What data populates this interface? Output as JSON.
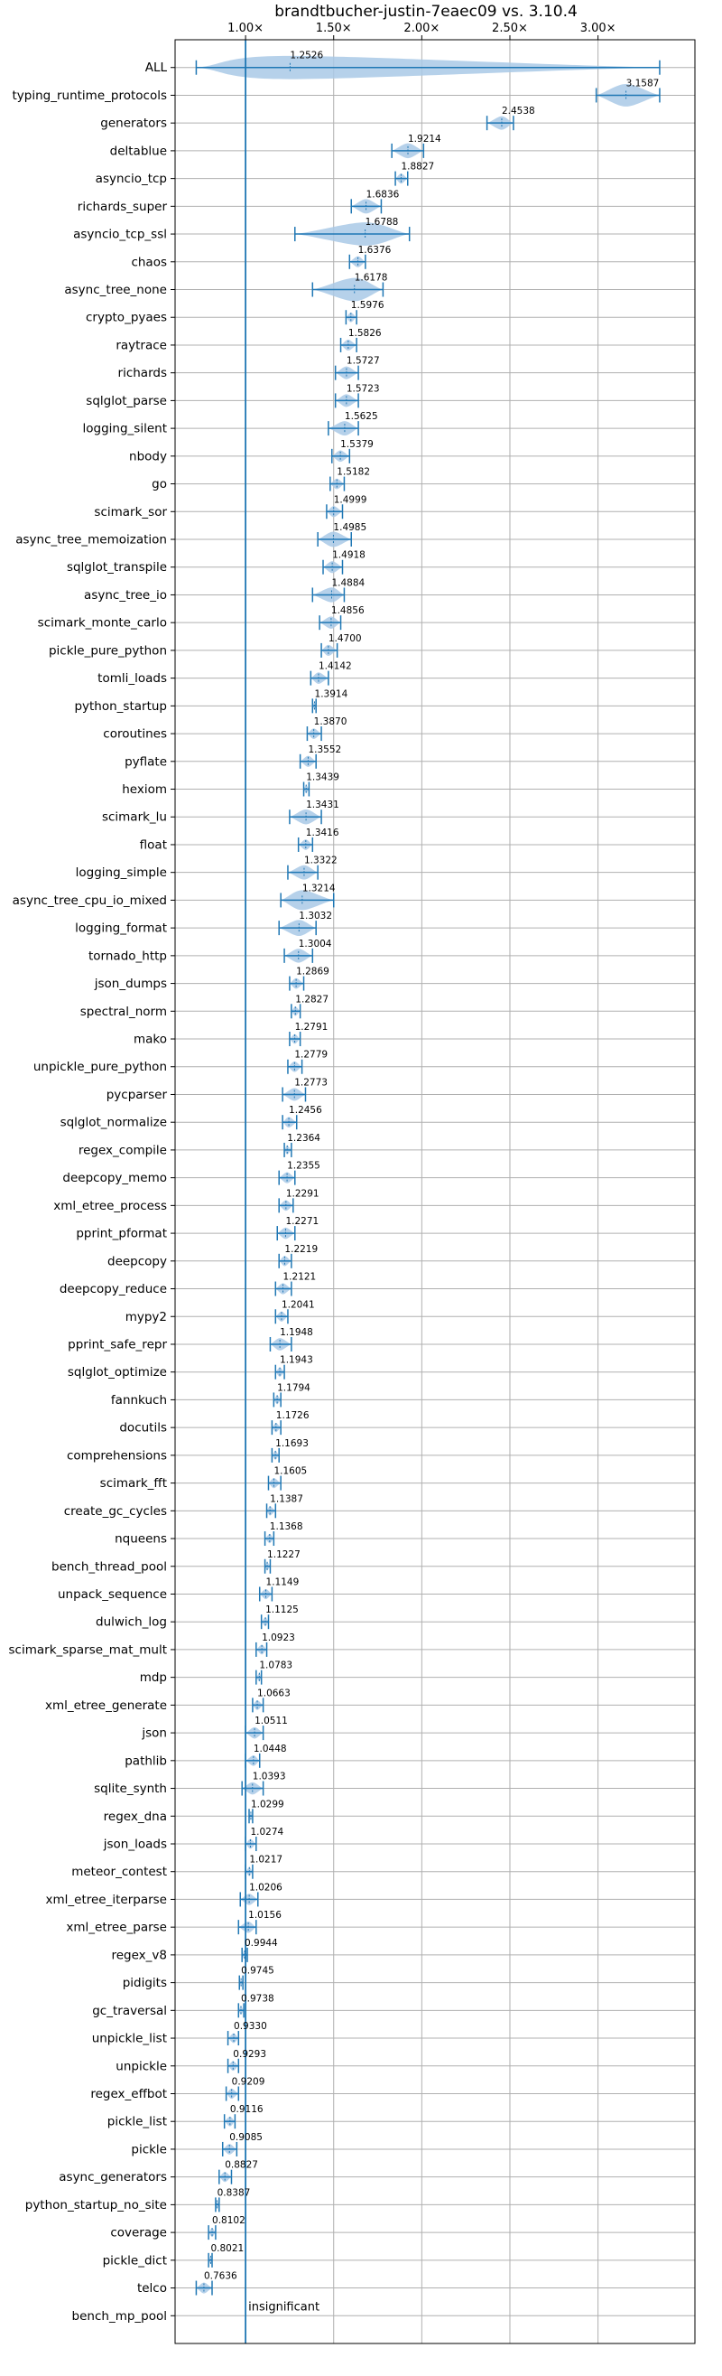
{
  "chart_data": {
    "type": "violin",
    "title": "brandtbucher-justin-7eaec09 vs. 3.10.4",
    "xlim": [
      0.6,
      3.55
    ],
    "x_ticks": [
      1.0,
      1.5,
      2.0,
      2.5,
      3.0
    ],
    "x_tick_labels": [
      "1.00×",
      "1.50×",
      "2.00×",
      "2.50×",
      "3.00×"
    ],
    "x_axis_position": "top",
    "grid": true,
    "reference_line": 1.0,
    "annotation": "insignificant",
    "colors": {
      "body": "#a9c9e6",
      "line": "#1f77b4",
      "grid": "#b0b0b0"
    },
    "benchmarks": [
      {
        "name": "ALL",
        "median": 1.2526,
        "lo": 0.72,
        "hi": 3.35
      },
      {
        "name": "typing_runtime_protocols",
        "median": 3.1587,
        "lo": 2.99,
        "hi": 3.35
      },
      {
        "name": "generators",
        "median": 2.4538,
        "lo": 2.37,
        "hi": 2.52
      },
      {
        "name": "deltablue",
        "median": 1.9214,
        "lo": 1.83,
        "hi": 2.01
      },
      {
        "name": "asyncio_tcp",
        "median": 1.8827,
        "lo": 1.85,
        "hi": 1.92
      },
      {
        "name": "richards_super",
        "median": 1.6836,
        "lo": 1.6,
        "hi": 1.77
      },
      {
        "name": "asyncio_tcp_ssl",
        "median": 1.6788,
        "lo": 1.28,
        "hi": 1.93
      },
      {
        "name": "chaos",
        "median": 1.6376,
        "lo": 1.59,
        "hi": 1.68
      },
      {
        "name": "async_tree_none",
        "median": 1.6178,
        "lo": 1.38,
        "hi": 1.78
      },
      {
        "name": "crypto_pyaes",
        "median": 1.5976,
        "lo": 1.57,
        "hi": 1.63
      },
      {
        "name": "raytrace",
        "median": 1.5826,
        "lo": 1.54,
        "hi": 1.63
      },
      {
        "name": "richards",
        "median": 1.5727,
        "lo": 1.51,
        "hi": 1.64
      },
      {
        "name": "sqlglot_parse",
        "median": 1.5723,
        "lo": 1.51,
        "hi": 1.64
      },
      {
        "name": "logging_silent",
        "median": 1.5625,
        "lo": 1.47,
        "hi": 1.64
      },
      {
        "name": "nbody",
        "median": 1.5379,
        "lo": 1.49,
        "hi": 1.59
      },
      {
        "name": "go",
        "median": 1.5182,
        "lo": 1.48,
        "hi": 1.56
      },
      {
        "name": "scimark_sor",
        "median": 1.4999,
        "lo": 1.46,
        "hi": 1.55
      },
      {
        "name": "async_tree_memoization",
        "median": 1.4985,
        "lo": 1.41,
        "hi": 1.6
      },
      {
        "name": "sqlglot_transpile",
        "median": 1.4918,
        "lo": 1.44,
        "hi": 1.55
      },
      {
        "name": "async_tree_io",
        "median": 1.4884,
        "lo": 1.38,
        "hi": 1.56
      },
      {
        "name": "scimark_monte_carlo",
        "median": 1.4856,
        "lo": 1.42,
        "hi": 1.54
      },
      {
        "name": "pickle_pure_python",
        "median": 1.47,
        "lo": 1.43,
        "hi": 1.52
      },
      {
        "name": "tomli_loads",
        "median": 1.4142,
        "lo": 1.37,
        "hi": 1.47
      },
      {
        "name": "python_startup",
        "median": 1.3914,
        "lo": 1.38,
        "hi": 1.4
      },
      {
        "name": "coroutines",
        "median": 1.387,
        "lo": 1.35,
        "hi": 1.43
      },
      {
        "name": "pyflate",
        "median": 1.3552,
        "lo": 1.31,
        "hi": 1.4
      },
      {
        "name": "hexiom",
        "median": 1.3439,
        "lo": 1.33,
        "hi": 1.36
      },
      {
        "name": "scimark_lu",
        "median": 1.3431,
        "lo": 1.25,
        "hi": 1.43
      },
      {
        "name": "float",
        "median": 1.3416,
        "lo": 1.3,
        "hi": 1.38
      },
      {
        "name": "logging_simple",
        "median": 1.3322,
        "lo": 1.24,
        "hi": 1.41
      },
      {
        "name": "async_tree_cpu_io_mixed",
        "median": 1.3214,
        "lo": 1.2,
        "hi": 1.5
      },
      {
        "name": "logging_format",
        "median": 1.3032,
        "lo": 1.19,
        "hi": 1.4
      },
      {
        "name": "tornado_http",
        "median": 1.3004,
        "lo": 1.22,
        "hi": 1.38
      },
      {
        "name": "json_dumps",
        "median": 1.2869,
        "lo": 1.25,
        "hi": 1.33
      },
      {
        "name": "spectral_norm",
        "median": 1.2827,
        "lo": 1.26,
        "hi": 1.31
      },
      {
        "name": "mako",
        "median": 1.2791,
        "lo": 1.25,
        "hi": 1.31
      },
      {
        "name": "unpickle_pure_python",
        "median": 1.2779,
        "lo": 1.24,
        "hi": 1.32
      },
      {
        "name": "pycparser",
        "median": 1.2773,
        "lo": 1.21,
        "hi": 1.34
      },
      {
        "name": "sqlglot_normalize",
        "median": 1.2456,
        "lo": 1.21,
        "hi": 1.29
      },
      {
        "name": "regex_compile",
        "median": 1.2364,
        "lo": 1.22,
        "hi": 1.26
      },
      {
        "name": "deepcopy_memo",
        "median": 1.2355,
        "lo": 1.19,
        "hi": 1.28
      },
      {
        "name": "xml_etree_process",
        "median": 1.2291,
        "lo": 1.19,
        "hi": 1.27
      },
      {
        "name": "pprint_pformat",
        "median": 1.2271,
        "lo": 1.18,
        "hi": 1.28
      },
      {
        "name": "deepcopy",
        "median": 1.2219,
        "lo": 1.19,
        "hi": 1.26
      },
      {
        "name": "deepcopy_reduce",
        "median": 1.2121,
        "lo": 1.17,
        "hi": 1.26
      },
      {
        "name": "mypy2",
        "median": 1.2041,
        "lo": 1.17,
        "hi": 1.24
      },
      {
        "name": "pprint_safe_repr",
        "median": 1.1948,
        "lo": 1.14,
        "hi": 1.26
      },
      {
        "name": "sqlglot_optimize",
        "median": 1.1943,
        "lo": 1.17,
        "hi": 1.22
      },
      {
        "name": "fannkuch",
        "median": 1.1794,
        "lo": 1.16,
        "hi": 1.2
      },
      {
        "name": "docutils",
        "median": 1.1726,
        "lo": 1.15,
        "hi": 1.2
      },
      {
        "name": "comprehensions",
        "median": 1.1693,
        "lo": 1.15,
        "hi": 1.19
      },
      {
        "name": "scimark_fft",
        "median": 1.1605,
        "lo": 1.13,
        "hi": 1.2
      },
      {
        "name": "create_gc_cycles",
        "median": 1.1387,
        "lo": 1.12,
        "hi": 1.17
      },
      {
        "name": "nqueens",
        "median": 1.1368,
        "lo": 1.11,
        "hi": 1.16
      },
      {
        "name": "bench_thread_pool",
        "median": 1.1227,
        "lo": 1.11,
        "hi": 1.14
      },
      {
        "name": "unpack_sequence",
        "median": 1.1149,
        "lo": 1.08,
        "hi": 1.15
      },
      {
        "name": "dulwich_log",
        "median": 1.1125,
        "lo": 1.09,
        "hi": 1.13
      },
      {
        "name": "scimark_sparse_mat_mult",
        "median": 1.0923,
        "lo": 1.06,
        "hi": 1.12
      },
      {
        "name": "mdp",
        "median": 1.0783,
        "lo": 1.06,
        "hi": 1.09
      },
      {
        "name": "xml_etree_generate",
        "median": 1.0663,
        "lo": 1.04,
        "hi": 1.1
      },
      {
        "name": "json",
        "median": 1.0511,
        "lo": 1.0,
        "hi": 1.1
      },
      {
        "name": "pathlib",
        "median": 1.0448,
        "lo": 1.0,
        "hi": 1.08
      },
      {
        "name": "sqlite_synth",
        "median": 1.0393,
        "lo": 0.98,
        "hi": 1.1
      },
      {
        "name": "regex_dna",
        "median": 1.0299,
        "lo": 1.02,
        "hi": 1.04
      },
      {
        "name": "json_loads",
        "median": 1.0274,
        "lo": 1.0,
        "hi": 1.06
      },
      {
        "name": "meteor_contest",
        "median": 1.0217,
        "lo": 1.0,
        "hi": 1.04
      },
      {
        "name": "xml_etree_iterparse",
        "median": 1.0206,
        "lo": 0.97,
        "hi": 1.07
      },
      {
        "name": "xml_etree_parse",
        "median": 1.0156,
        "lo": 0.96,
        "hi": 1.06
      },
      {
        "name": "regex_v8",
        "median": 0.9944,
        "lo": 0.98,
        "hi": 1.01
      },
      {
        "name": "pidigits",
        "median": 0.9745,
        "lo": 0.965,
        "hi": 0.985
      },
      {
        "name": "gc_traversal",
        "median": 0.9738,
        "lo": 0.96,
        "hi": 0.99
      },
      {
        "name": "unpickle_list",
        "median": 0.933,
        "lo": 0.9,
        "hi": 0.96
      },
      {
        "name": "unpickle",
        "median": 0.9293,
        "lo": 0.9,
        "hi": 0.96
      },
      {
        "name": "regex_effbot",
        "median": 0.9209,
        "lo": 0.89,
        "hi": 0.96
      },
      {
        "name": "pickle_list",
        "median": 0.9116,
        "lo": 0.88,
        "hi": 0.94
      },
      {
        "name": "pickle",
        "median": 0.9085,
        "lo": 0.87,
        "hi": 0.95
      },
      {
        "name": "async_generators",
        "median": 0.8827,
        "lo": 0.85,
        "hi": 0.92
      },
      {
        "name": "python_startup_no_site",
        "median": 0.8387,
        "lo": 0.83,
        "hi": 0.85
      },
      {
        "name": "coverage",
        "median": 0.8102,
        "lo": 0.79,
        "hi": 0.83
      },
      {
        "name": "pickle_dict",
        "median": 0.8021,
        "lo": 0.79,
        "hi": 0.81
      },
      {
        "name": "telco",
        "median": 0.7636,
        "lo": 0.72,
        "hi": 0.81
      },
      {
        "name": "bench_mp_pool",
        "median": null,
        "lo": null,
        "hi": null
      }
    ]
  }
}
